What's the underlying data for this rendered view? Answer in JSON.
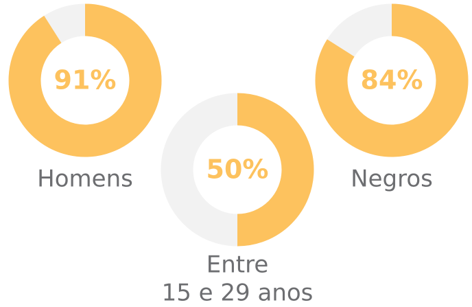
{
  "chart_data": [
    {
      "type": "donut",
      "label": [
        "Homens"
      ],
      "values": [
        91
      ],
      "value_labels": [
        "91%"
      ],
      "color": "#fdc25e"
    },
    {
      "type": "donut",
      "label": [
        "Entre",
        "15 e 29 anos"
      ],
      "values": [
        50
      ],
      "value_labels": [
        "50%"
      ],
      "color": "#fdc25e"
    },
    {
      "type": "donut",
      "label": [
        "Negros"
      ],
      "values": [
        84
      ],
      "value_labels": [
        "84%"
      ],
      "color": "#fdc25e"
    }
  ]
}
